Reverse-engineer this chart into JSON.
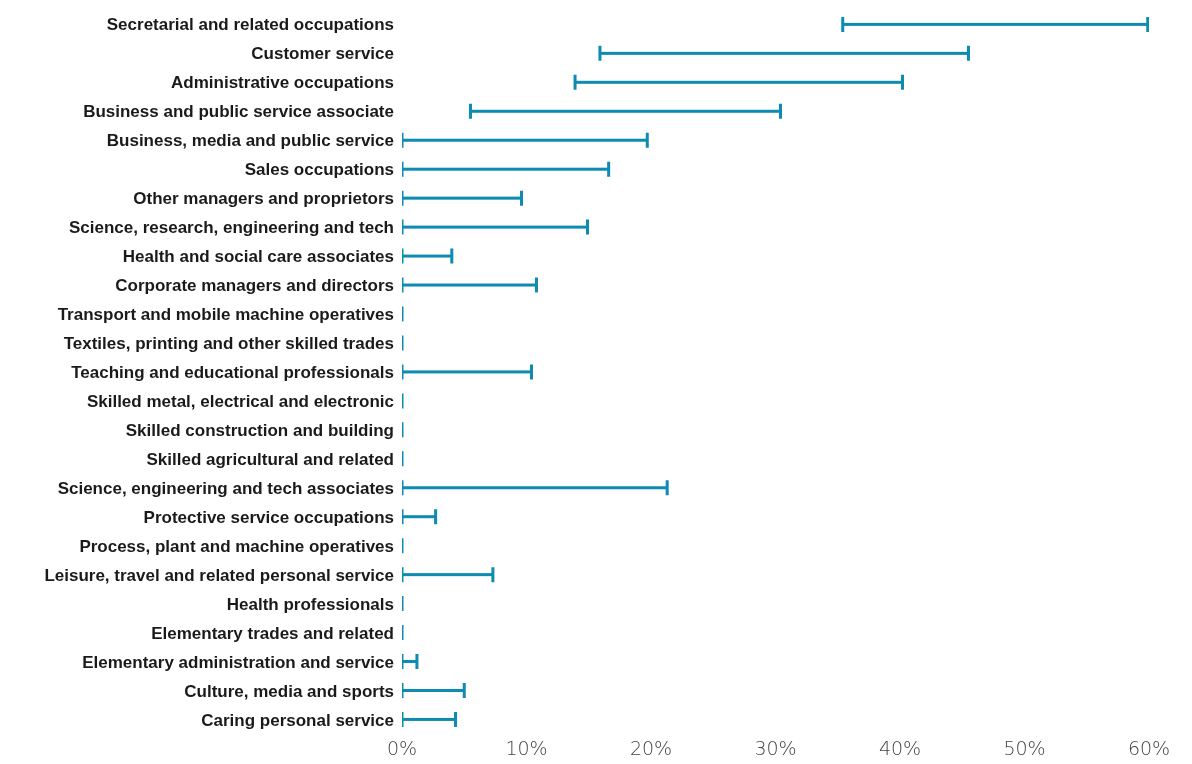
{
  "chart_data": {
    "type": "bar",
    "orientation": "horizontal",
    "color": "#0e8bb0",
    "categories": [
      "Secretarial and related occupations",
      "Customer service",
      "Administrative occupations",
      "Business and public service associate",
      "Business, media and public service",
      "Sales occupations",
      "Other managers and proprietors",
      "Science, research, engineering and tech",
      "Health and social care associates",
      "Corporate managers and directors",
      "Transport and mobile machine operatives",
      "Textiles, printing and other skilled trades",
      "Teaching and educational professionals",
      "Skilled metal, electrical and electronic",
      "Skilled construction and building",
      "Skilled agricultural and related",
      "Science, engineering and tech associates",
      "Protective service occupations",
      "Process, plant and machine operatives",
      "Leisure, travel and related personal service",
      "Health professionals",
      "Elementary trades and related",
      "Elementary administration and service",
      "Culture, media and sports",
      "Caring personal service"
    ],
    "base": [
      35.4,
      15.9,
      13.9,
      5.5,
      0,
      0,
      0,
      0,
      0,
      0,
      0,
      0,
      0,
      0,
      0,
      0,
      0,
      0,
      0,
      0,
      0,
      0,
      0,
      0,
      0
    ],
    "values": [
      24.5,
      29.6,
      26.3,
      24.9,
      19.7,
      16.6,
      9.6,
      14.9,
      4.0,
      10.8,
      0,
      0,
      10.4,
      0,
      0,
      0,
      21.3,
      2.7,
      0,
      7.3,
      0,
      0,
      1.2,
      5.0,
      4.3
    ],
    "xlim": [
      0,
      60
    ],
    "xticks": [
      {
        "value": 0,
        "label": "0%"
      },
      {
        "value": 10,
        "label": "10%"
      },
      {
        "value": 20,
        "label": "20%"
      },
      {
        "value": 30,
        "label": "30%"
      },
      {
        "value": 40,
        "label": "40%"
      },
      {
        "value": 50,
        "label": "50%"
      },
      {
        "value": 60,
        "label": "60%"
      }
    ],
    "grid": false
  }
}
